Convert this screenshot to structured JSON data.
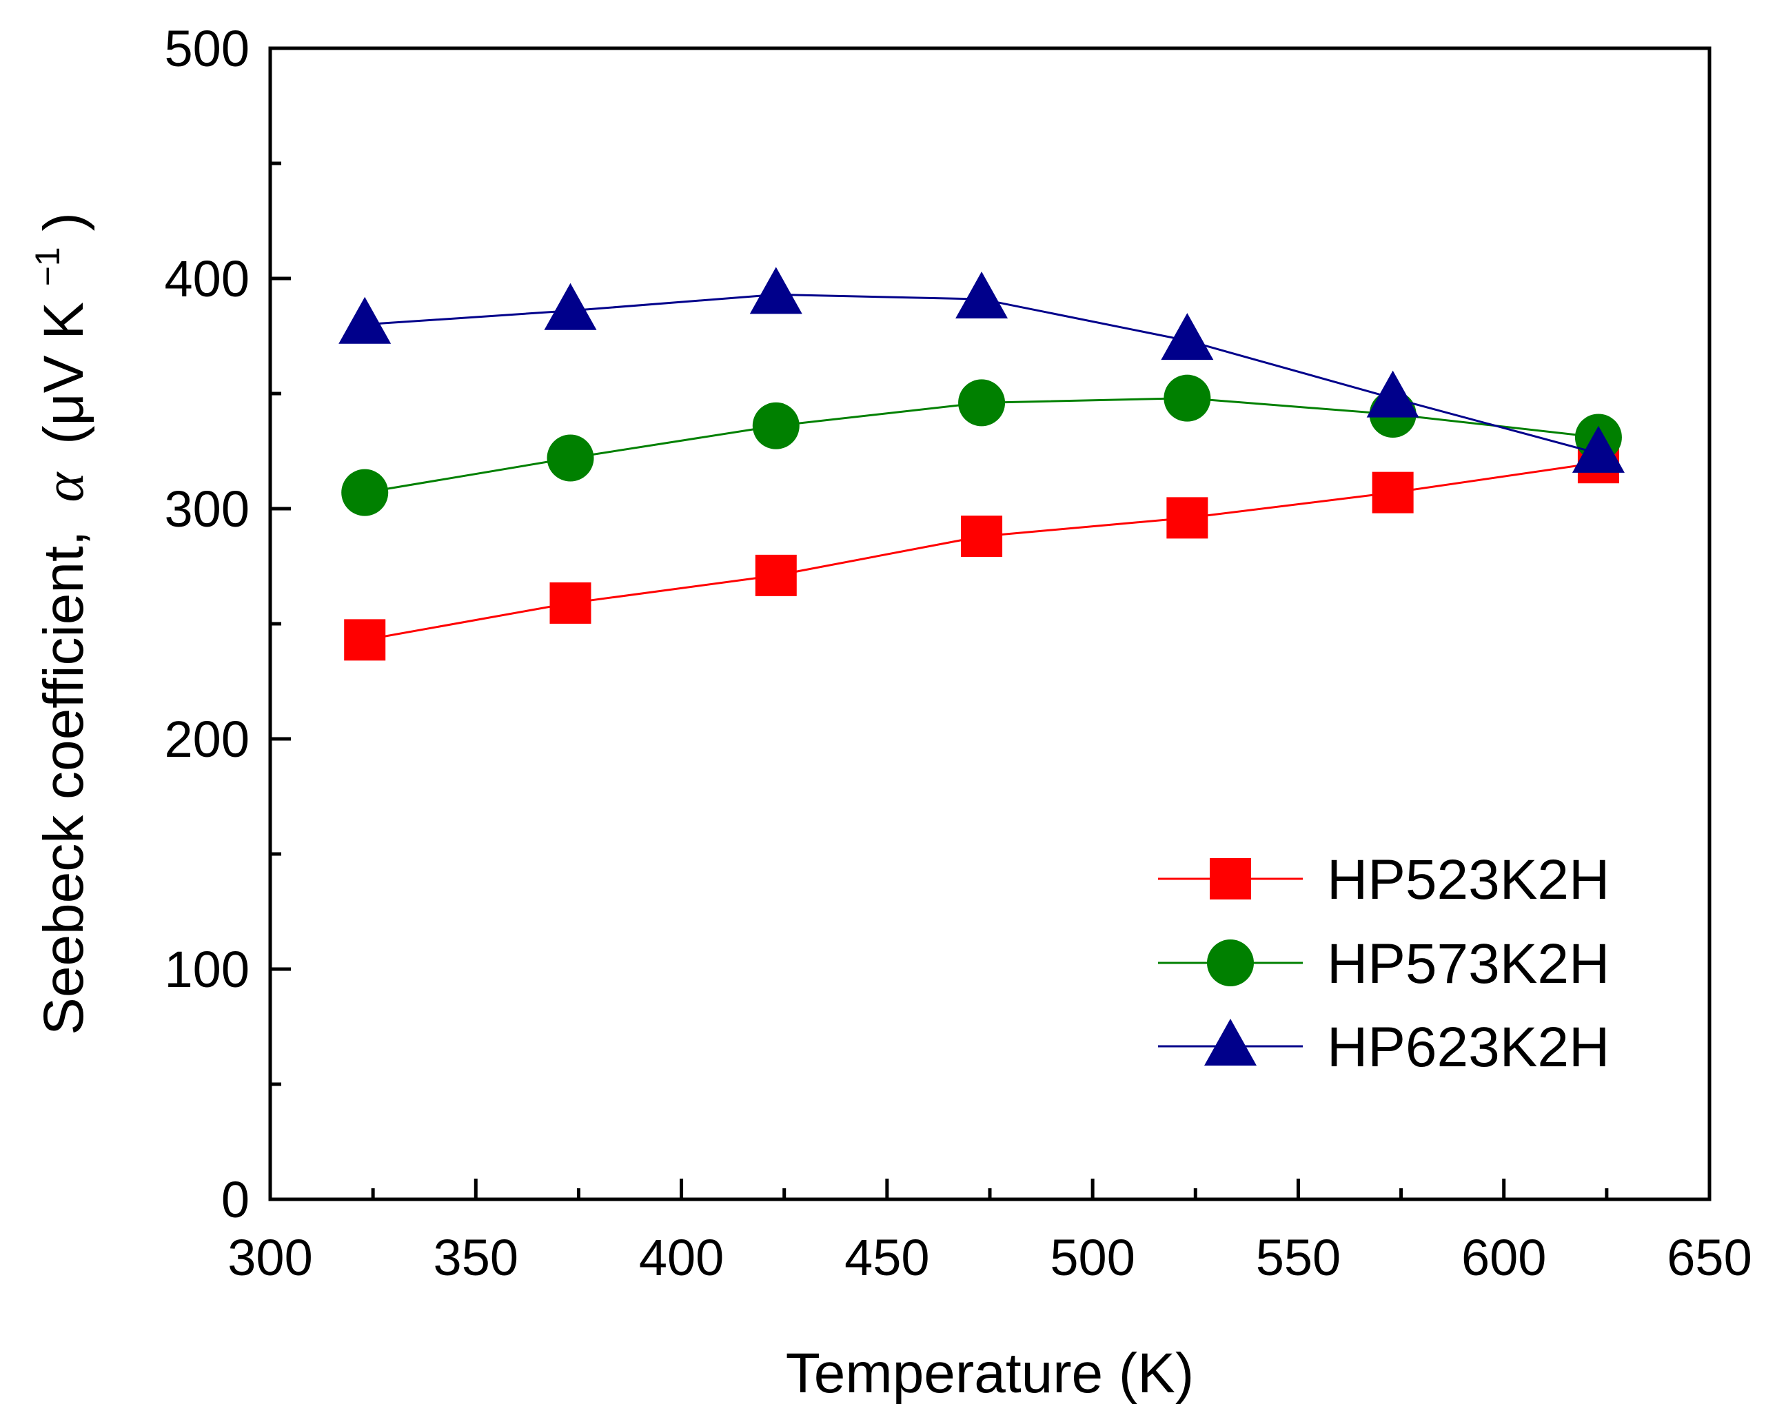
{
  "chart_data": {
    "type": "line",
    "title": "",
    "xlabel": "Temperature (K)",
    "ylabel_prefix": "Seebeck coefficient,",
    "ylabel_symbol": "α",
    "ylabel_unit_open": "(μV K",
    "ylabel_unit_sup": "−1",
    "ylabel_unit_close": ")",
    "xlim": [
      300,
      650
    ],
    "ylim": [
      0,
      500
    ],
    "x_ticks": [
      300,
      350,
      400,
      450,
      500,
      550,
      600,
      650
    ],
    "y_ticks": [
      0,
      100,
      200,
      300,
      400,
      500
    ],
    "x_minor_ticks": [
      325,
      375,
      425,
      475,
      525,
      575,
      625
    ],
    "y_minor_ticks": [
      50,
      150,
      250,
      350,
      450
    ],
    "grid": false,
    "legend_position": "bottom-right",
    "x": [
      323,
      373,
      423,
      473,
      523,
      573,
      623
    ],
    "series": [
      {
        "name": "HP523K2H",
        "marker": "square",
        "color": "#ff0000",
        "values": [
          243,
          259,
          271,
          288,
          296,
          307,
          320
        ]
      },
      {
        "name": "HP573K2H",
        "marker": "circle",
        "color": "#008000",
        "values": [
          307,
          322,
          336,
          346,
          348,
          341,
          331
        ]
      },
      {
        "name": "HP623K2H",
        "marker": "triangle",
        "color": "#00008b",
        "values": [
          380,
          386,
          393,
          391,
          373,
          348,
          324
        ]
      }
    ]
  }
}
